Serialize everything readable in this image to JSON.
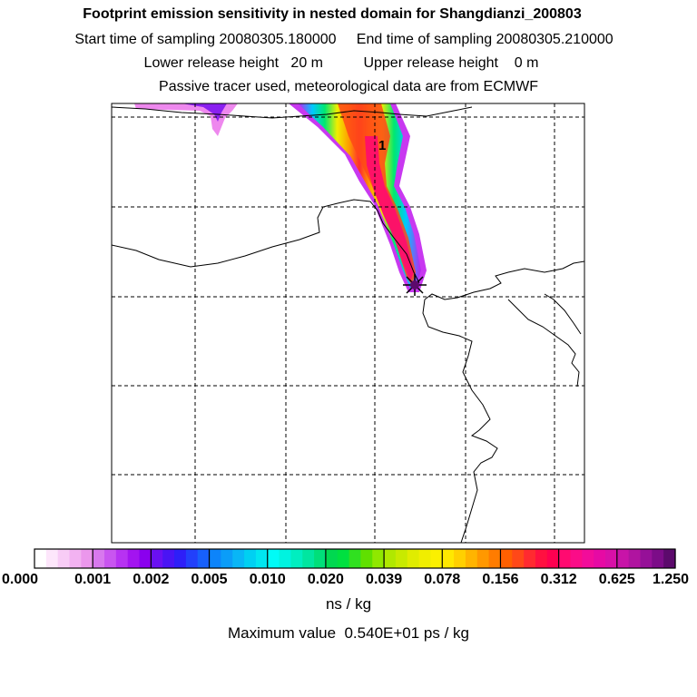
{
  "header": {
    "title": "Footprint emission sensitivity in nested domain for Shangdianzi_200803",
    "start_label": "Start time of sampling 20080305.180000",
    "end_label": "End time of sampling 20080305.210000",
    "lower_release": "Lower release height   20 m",
    "upper_release": "Upper release height    0 m",
    "tracer_note": "Passive tracer used, meteorological data are from ECMWF"
  },
  "map": {
    "release_marker": "1"
  },
  "chart_data": {
    "type": "heatmap",
    "title": "Footprint emission sensitivity in nested domain for Shangdianzi_200803",
    "grid": true,
    "colorbar": {
      "tick_labels": [
        "0.000",
        "0.001",
        "0.002",
        "0.005",
        "0.010",
        "0.020",
        "0.039",
        "0.078",
        "0.156",
        "0.312",
        "0.625",
        "1.250"
      ],
      "colors": [
        [
          "#ffffff",
          "#fde6fb",
          "#f8ccf6",
          "#f2b2f1",
          "#eb97ec"
        ],
        [
          "#d878ee",
          "#c955f0",
          "#b732f2",
          "#a314f0",
          "#8a00ee"
        ],
        [
          "#6a10f2",
          "#4a14f4",
          "#2e1ff8",
          "#2240fb",
          "#1760fc"
        ],
        [
          "#0d84fa",
          "#0b9df8",
          "#09b6f6",
          "#00d0f2",
          "#00e6f0"
        ],
        [
          "#00fbf7",
          "#00f3e0",
          "#00eec0",
          "#00e6a0",
          "#00df7a"
        ],
        [
          "#00d850",
          "#00e040",
          "#30e020",
          "#60e000",
          "#90e800"
        ],
        [
          "#b0e800",
          "#c8ea00",
          "#e0ec00",
          "#f0ee00",
          "#fbf000"
        ],
        [
          "#ffe800",
          "#ffd000",
          "#ffb400",
          "#ff9800",
          "#ff7c00"
        ],
        [
          "#ff6000",
          "#ff4818",
          "#ff2a30",
          "#ff1040",
          "#ff0050"
        ],
        [
          "#ff0a70",
          "#fb0c88",
          "#f20c9a",
          "#e60aa4",
          "#d810a8"
        ],
        [
          "#c814a8",
          "#b014a0",
          "#961098",
          "#7c0c88",
          "#5c0a6c"
        ]
      ],
      "units": "ns / kg"
    },
    "max_value_label": "Maximum value  0.540E+01 ps / kg"
  }
}
